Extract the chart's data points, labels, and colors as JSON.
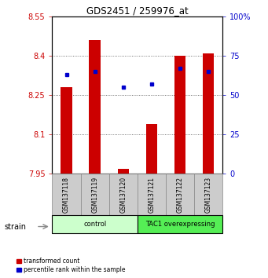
{
  "title": "GDS2451 / 259976_at",
  "samples": [
    "GSM137118",
    "GSM137119",
    "GSM137120",
    "GSM137121",
    "GSM137122",
    "GSM137123"
  ],
  "transformed_counts": [
    8.28,
    8.46,
    7.97,
    8.14,
    8.4,
    8.41
  ],
  "percentile_ranks": [
    63,
    65,
    55,
    57,
    67,
    65
  ],
  "ylim_left": [
    7.95,
    8.55
  ],
  "ylim_right": [
    0,
    100
  ],
  "yticks_left": [
    7.95,
    8.1,
    8.25,
    8.4,
    8.55
  ],
  "yticks_right": [
    0,
    25,
    50,
    75,
    100
  ],
  "ytick_labels_left": [
    "7.95",
    "8.1",
    "8.25",
    "8.4",
    "8.55"
  ],
  "ytick_labels_right": [
    "0",
    "25",
    "50",
    "75",
    "100%"
  ],
  "bar_color": "#cc0000",
  "dot_color": "#0000cc",
  "bar_width": 0.4,
  "groups": [
    {
      "label": "control",
      "indices": [
        0,
        1,
        2
      ],
      "color": "#ccffcc"
    },
    {
      "label": "TAC1 overexpressing",
      "indices": [
        3,
        4,
        5
      ],
      "color": "#55ee55"
    }
  ],
  "strain_label": "strain",
  "legend_items": [
    {
      "color": "#cc0000",
      "label": "transformed count"
    },
    {
      "color": "#0000cc",
      "label": "percentile rank within the sample"
    }
  ],
  "grid_color": "#555555",
  "grid_style": "dotted",
  "left_color": "#cc0000",
  "right_color": "#0000cc",
  "sample_box_color": "#cccccc",
  "sample_box_edge": "#888888"
}
